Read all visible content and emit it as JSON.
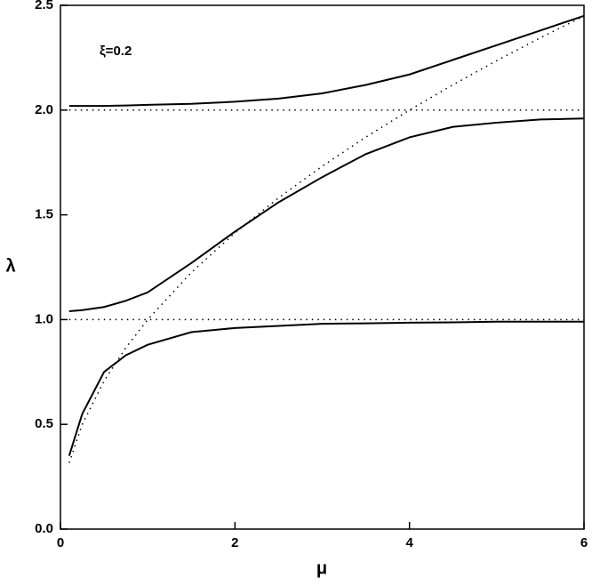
{
  "chart_data": {
    "type": "line",
    "annotation": "ξ=0.2",
    "x_label": "μ",
    "y_label": "λ",
    "x": [
      0.1,
      0.25,
      0.5,
      0.75,
      1,
      1.5,
      2,
      2.5,
      3,
      3.5,
      4,
      4.5,
      5,
      5.5,
      6
    ],
    "series": [
      {
        "color": "#000000",
        "dotted": false,
        "values": [
          0.35,
          0.55,
          0.75,
          0.83,
          0.88,
          0.94,
          0.96,
          0.97,
          0.98,
          0.982,
          0.985,
          0.987,
          0.99,
          0.99,
          0.99
        ]
      },
      {
        "color": "#000000",
        "dotted": false,
        "values": [
          1.04,
          1.045,
          1.06,
          1.09,
          1.13,
          1.27,
          1.42,
          1.56,
          1.68,
          1.79,
          1.87,
          1.92,
          1.94,
          1.955,
          1.96
        ]
      },
      {
        "color": "#000000",
        "dotted": false,
        "values": [
          2.02,
          2.02,
          2.02,
          2.022,
          2.025,
          2.03,
          2.04,
          2.055,
          2.08,
          2.12,
          2.17,
          2.24,
          2.31,
          2.38,
          2.45
        ]
      },
      {
        "color": "#000000",
        "dotted": true,
        "values": [
          0.316,
          0.5,
          0.707,
          0.866,
          1,
          1.225,
          1.414,
          1.581,
          1.732,
          1.871,
          2,
          2.121,
          2.236,
          2.345,
          2.449
        ]
      },
      {
        "color": "#000000",
        "dotted": true,
        "values": [
          1,
          1,
          1,
          1,
          1,
          1,
          1,
          1,
          1,
          1,
          1,
          1,
          1,
          1,
          1
        ]
      },
      {
        "color": "#000000",
        "dotted": true,
        "values": [
          2,
          2,
          2,
          2,
          2,
          2,
          2,
          2,
          2,
          2,
          2,
          2,
          2,
          2,
          2
        ]
      }
    ],
    "xlim": [
      0,
      6
    ],
    "xticks": [
      0,
      2,
      4,
      6
    ],
    "ylim": [
      0,
      2.5
    ],
    "yticks": [
      {
        "value": 0,
        "label": "0.0"
      },
      {
        "value": 0.5,
        "label": "0.5"
      },
      {
        "value": 1,
        "label": "1.0"
      },
      {
        "value": 1.5,
        "label": "1.5"
      },
      {
        "value": 2,
        "label": "2.0"
      },
      {
        "value": 2.5,
        "label": "2.5"
      }
    ]
  }
}
